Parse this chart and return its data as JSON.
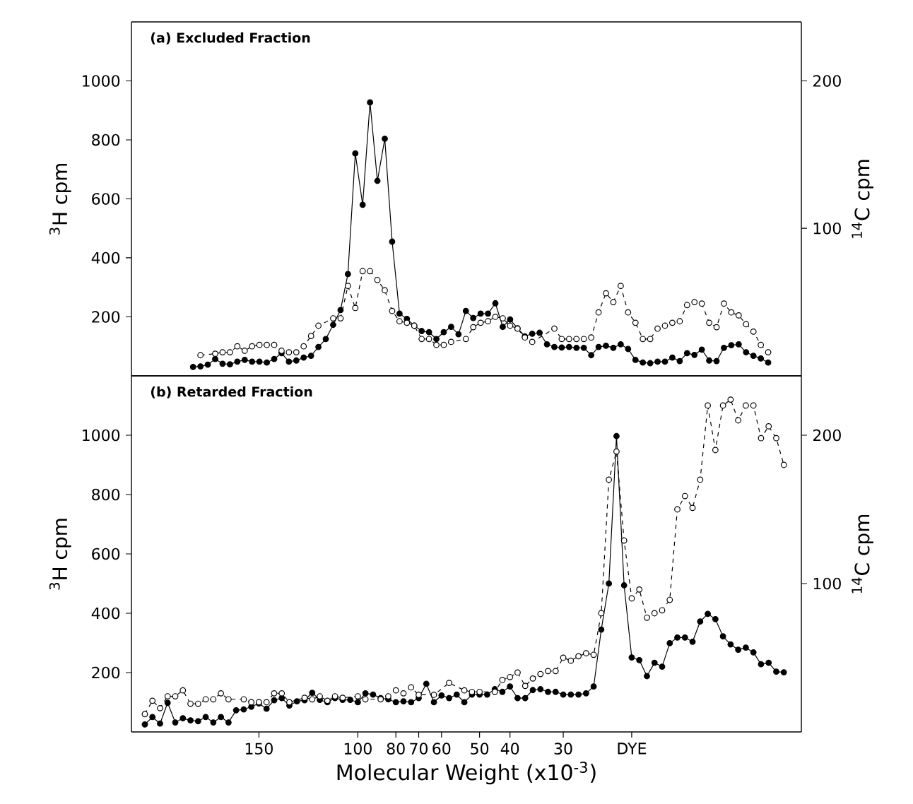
{
  "chart_data": [
    {
      "type": "line",
      "title": "(a) Excluded Fraction",
      "ylabel": "$^{3}$H cpm",
      "y2label": "$^{14}$C cpm",
      "categories": [
        null,
        null,
        null,
        null,
        null,
        null,
        null,
        null,
        null,
        null,
        null,
        null,
        null,
        null,
        null,
        null,
        null,
        null,
        null,
        null,
        null,
        null,
        null,
        null,
        null,
        null,
        null,
        null,
        null,
        null,
        null,
        null,
        null,
        null,
        null,
        null,
        null,
        null,
        null,
        null,
        null,
        null,
        null,
        null,
        null,
        null,
        null,
        null,
        null,
        null,
        null,
        null,
        null,
        null,
        null,
        null,
        null,
        null,
        null,
        null,
        null,
        null,
        null,
        null,
        null,
        null,
        null,
        null,
        null,
        null,
        null,
        null,
        null,
        null,
        null,
        null,
        null,
        null,
        null
      ],
      "ylim": [
        0,
        1200
      ],
      "yticks": [
        200,
        400,
        600,
        800,
        1000
      ],
      "y2lim": [
        0,
        240
      ],
      "y2ticks": [
        100,
        200
      ],
      "grid": false,
      "series": [
        {
          "color": "#000000",
          "marker": "circle",
          "line_style": "solid",
          "axis": "y",
          "values": [
            30,
            32,
            38,
            57,
            41,
            39,
            48,
            54,
            48,
            48,
            45,
            57,
            77,
            48,
            52,
            62,
            68,
            98,
            125,
            173,
            223,
            345,
            754,
            580,
            927,
            661,
            804,
            455,
            211,
            193,
            170,
            152,
            148,
            125,
            148,
            166,
            141,
            220,
            196,
            211,
            211,
            246,
            166,
            191,
            161,
            134,
            143,
            146,
            107,
            98,
            96,
            98,
            95,
            95,
            70,
            98,
            102,
            95,
            107,
            91,
            54,
            45,
            43,
            48,
            48,
            62,
            50,
            77,
            71,
            89,
            52,
            50,
            95,
            104,
            107,
            80,
            68,
            59,
            45
          ]
        },
        {
          "color": "#000000",
          "marker": "circle",
          "line_style": "dashed",
          "axis": "y2",
          "values": [
            null,
            14,
            null,
            15,
            16,
            16,
            20,
            17,
            20,
            21,
            21,
            21,
            17,
            16,
            16,
            20,
            27,
            34,
            null,
            39,
            39,
            61,
            46,
            71,
            71,
            65,
            58,
            44,
            37,
            36,
            34,
            25,
            25,
            21,
            21,
            23,
            null,
            25,
            33,
            36,
            37,
            40,
            39,
            34,
            32,
            26,
            23,
            null,
            null,
            32,
            25,
            25,
            25,
            25,
            26,
            43,
            56,
            50,
            61,
            43,
            36,
            25,
            25,
            32,
            34,
            36,
            37,
            48,
            50,
            49,
            36,
            33,
            49,
            43,
            41,
            35,
            30,
            21,
            16
          ]
        }
      ]
    },
    {
      "type": "line",
      "title": "(b) Retarded Fraction",
      "xlabel": "Molecular Weight (x10$^{-3}$)",
      "ylabel": "$^{3}$H cpm",
      "y2label": "$^{14}$C cpm",
      "categories": [
        null,
        null,
        null,
        null,
        null,
        null,
        null,
        null,
        null,
        null,
        null,
        null,
        null,
        null,
        null,
        "150",
        null,
        null,
        null,
        null,
        null,
        null,
        null,
        null,
        null,
        null,
        null,
        null,
        "100",
        null,
        null,
        null,
        null,
        "80",
        null,
        null,
        "70",
        null,
        null,
        "60",
        null,
        null,
        null,
        null,
        "50",
        null,
        null,
        null,
        "40",
        null,
        null,
        null,
        null,
        null,
        null,
        "30",
        null,
        null,
        null,
        null,
        null,
        null,
        null,
        null,
        "DYE",
        null,
        null,
        null,
        null,
        null,
        null,
        null,
        null,
        null,
        null,
        null,
        null,
        null,
        null,
        null,
        null,
        null,
        null,
        null,
        null
      ],
      "ylim": [
        0,
        1200
      ],
      "yticks": [
        200,
        400,
        600,
        800,
        1000
      ],
      "y2lim": [
        0,
        240
      ],
      "y2ticks": [
        100,
        200
      ],
      "grid": false,
      "series": [
        {
          "color": "#000000",
          "marker": "circle",
          "line_style": "solid",
          "axis": "y",
          "values": [
            25,
            50,
            28,
            98,
            32,
            46,
            39,
            36,
            50,
            32,
            50,
            32,
            73,
            76,
            85,
            96,
            78,
            107,
            114,
            89,
            103,
            107,
            132,
            108,
            100,
            114,
            108,
            108,
            100,
            130,
            126,
            114,
            110,
            100,
            103,
            100,
            114,
            162,
            100,
            123,
            114,
            126,
            100,
            126,
            126,
            126,
            144,
            135,
            153,
            114,
            114,
            141,
            144,
            135,
            135,
            126,
            126,
            126,
            130,
            153,
            345,
            500,
            997,
            494,
            251,
            242,
            188,
            233,
            220,
            299,
            318,
            318,
            304,
            372,
            398,
            380,
            322,
            295,
            277,
            284,
            268,
            228,
            233,
            203,
            201
          ]
        },
        {
          "color": "#000000",
          "marker": "circle",
          "line_style": "dashed",
          "axis": "y2",
          "values": [
            12,
            21,
            16,
            24,
            24,
            28,
            19,
            19,
            22,
            22,
            26,
            22,
            null,
            22,
            20,
            20,
            20,
            26,
            26,
            20,
            null,
            23,
            22,
            24,
            21,
            24,
            23,
            null,
            24,
            22,
            null,
            22,
            24,
            28,
            26,
            30,
            25,
            null,
            25,
            null,
            33,
            null,
            28,
            27,
            27,
            null,
            27,
            35,
            37,
            40,
            31,
            36,
            39,
            41,
            41,
            50,
            48,
            51,
            53,
            52,
            80,
            170,
            189,
            129,
            90,
            96,
            77,
            80,
            82,
            89,
            150,
            159,
            151,
            170,
            220,
            190,
            220,
            224,
            210,
            220,
            220,
            198,
            206,
            198,
            180
          ]
        }
      ]
    }
  ]
}
